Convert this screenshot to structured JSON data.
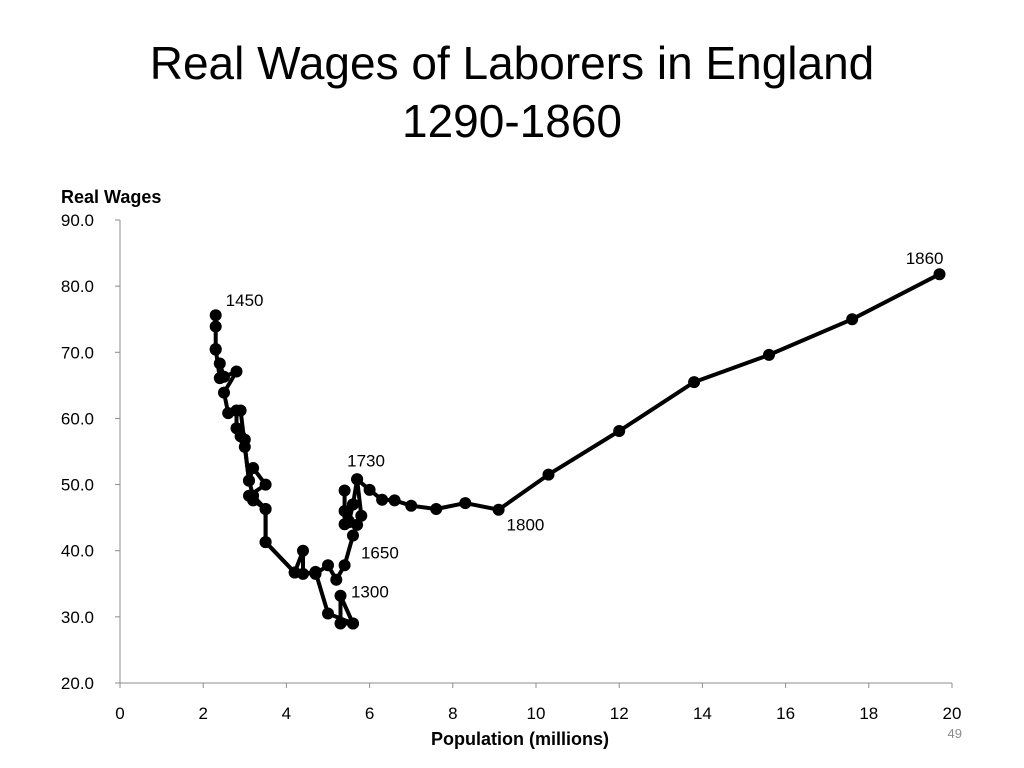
{
  "slide": {
    "title_line1": "Real Wages of Laborers in England",
    "title_line2": "1290-1860",
    "page_number": "49"
  },
  "chart_data": {
    "type": "line",
    "ylabel": "Real Wages",
    "xlabel": "Population (millions)",
    "xlim": [
      0,
      20
    ],
    "ylim": [
      20,
      90
    ],
    "x_ticks": [
      0,
      2,
      4,
      6,
      8,
      10,
      12,
      14,
      16,
      18,
      20
    ],
    "y_ticks": [
      "20.0",
      "30.0",
      "40.0",
      "50.0",
      "60.0",
      "70.0",
      "80.0",
      "90.0"
    ],
    "grid": false,
    "marker": "circle",
    "line_color": "#000000",
    "series": [
      {
        "points": [
          [
            5.6,
            29.0
          ],
          [
            5.3,
            29.0
          ],
          [
            5.3,
            33.2
          ],
          [
            5.6,
            29.0
          ],
          [
            5.0,
            30.5
          ],
          [
            4.7,
            36.8
          ],
          [
            4.4,
            36.5
          ],
          [
            4.4,
            40.0
          ],
          [
            4.2,
            36.7
          ],
          [
            3.5,
            41.3
          ],
          [
            3.5,
            46.3
          ],
          [
            3.2,
            47.6
          ],
          [
            3.1,
            48.3
          ],
          [
            3.5,
            50.0
          ],
          [
            3.2,
            52.5
          ],
          [
            3.1,
            50.6
          ],
          [
            3.0,
            55.7
          ],
          [
            3.0,
            56.8
          ],
          [
            2.9,
            57.3
          ],
          [
            2.8,
            58.5
          ],
          [
            2.8,
            61.2
          ],
          [
            2.6,
            60.8
          ],
          [
            2.5,
            63.9
          ],
          [
            2.8,
            67.1
          ],
          [
            2.5,
            66.3
          ],
          [
            2.4,
            68.3
          ],
          [
            2.4,
            66.1
          ],
          [
            2.3,
            70.5
          ],
          [
            2.3,
            70.4
          ],
          [
            2.3,
            73.9
          ],
          [
            2.3,
            75.6
          ]
        ]
      },
      {
        "points": [
          [
            2.9,
            61.2
          ],
          [
            3.1,
            50.6
          ],
          [
            3.2,
            48.3
          ],
          [
            3.5,
            46.3
          ],
          [
            3.5,
            41.3
          ],
          [
            4.2,
            36.7
          ],
          [
            4.7,
            36.5
          ],
          [
            5.0,
            37.8
          ],
          [
            5.2,
            35.6
          ],
          [
            5.4,
            37.8
          ],
          [
            5.6,
            42.3
          ],
          [
            5.7,
            43.9
          ],
          [
            5.8,
            45.3
          ],
          [
            5.7,
            50.8
          ],
          [
            5.6,
            47.0
          ],
          [
            5.5,
            44.5
          ],
          [
            5.4,
            46.0
          ],
          [
            5.4,
            49.1
          ],
          [
            5.4,
            44.0
          ],
          [
            5.5,
            44.3
          ],
          [
            5.6,
            47.0
          ],
          [
            5.7,
            50.8
          ],
          [
            6.0,
            49.2
          ],
          [
            6.3,
            47.7
          ],
          [
            6.6,
            47.6
          ],
          [
            7.0,
            46.8
          ],
          [
            7.6,
            46.3
          ],
          [
            8.3,
            47.2
          ],
          [
            9.1,
            46.2
          ],
          [
            10.3,
            51.5
          ],
          [
            12.0,
            58.1
          ],
          [
            13.8,
            65.5
          ],
          [
            15.6,
            69.6
          ],
          [
            17.6,
            75.0
          ],
          [
            19.7,
            81.8
          ]
        ]
      }
    ],
    "annotations": [
      {
        "text": "1450",
        "x": 2.3,
        "y": 75.6
      },
      {
        "text": "1860",
        "x": 19.7,
        "y": 81.8
      },
      {
        "text": "1730",
        "x": 5.7,
        "y": 50.8
      },
      {
        "text": "1800",
        "x": 9.1,
        "y": 46.2
      },
      {
        "text": "1650",
        "x": 5.6,
        "y": 42.3
      },
      {
        "text": "1300",
        "x": 5.6,
        "y": 29.0
      }
    ]
  }
}
